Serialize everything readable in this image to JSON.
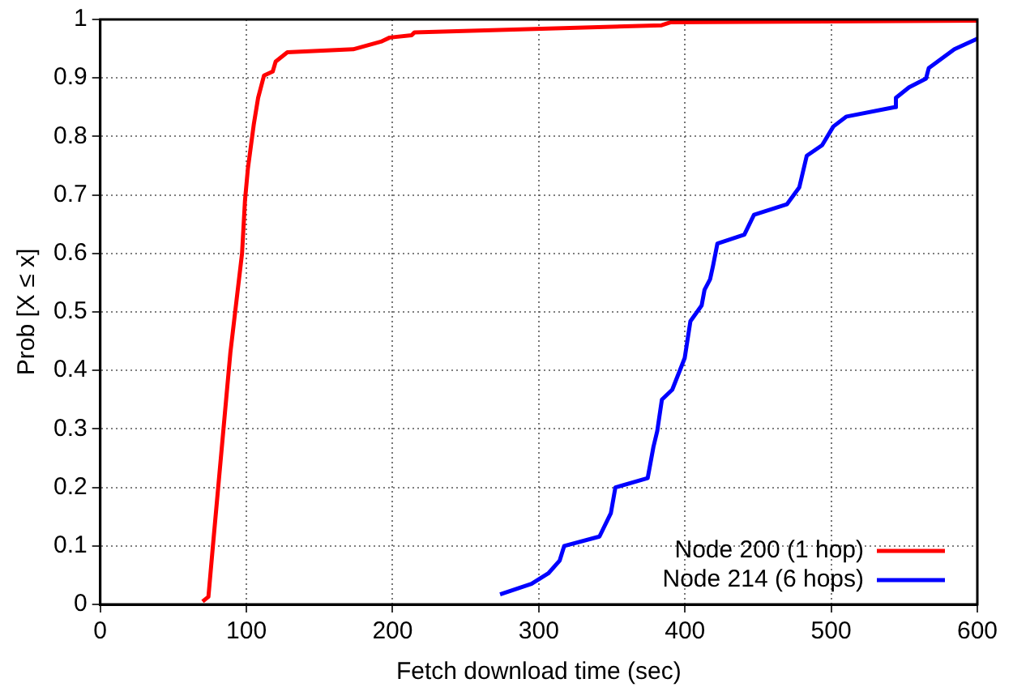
{
  "chart_data": {
    "type": "line",
    "xlabel": "Fetch download time (sec)",
    "ylabel": "Prob [X ≤ x]",
    "xlim": [
      0,
      600
    ],
    "xticks": [
      0,
      100,
      200,
      300,
      400,
      500,
      600
    ],
    "ylim": [
      0,
      1
    ],
    "yticks": [
      0,
      0.1,
      0.2,
      0.3,
      0.4,
      0.5,
      0.6,
      0.7,
      0.8,
      0.9,
      1
    ],
    "grid": true,
    "legend": "bottom right",
    "marker": "none",
    "line_style": "solid",
    "series": [
      {
        "name": "Node 200 (1 hop)",
        "color": "#ff0000",
        "x": [
          70,
          74,
          77,
          89,
          97,
          99,
          101,
          105,
          108,
          112,
          118,
          120,
          128,
          173,
          192,
          198,
          213,
          215,
          384,
          390,
          600
        ],
        "values": [
          0.005,
          0.013,
          0.098,
          0.43,
          0.6,
          0.69,
          0.745,
          0.82,
          0.866,
          0.904,
          0.911,
          0.928,
          0.944,
          0.949,
          0.962,
          0.969,
          0.973,
          0.978,
          0.99,
          0.995,
          0.998
        ]
      },
      {
        "name": "Node 214 (6 hops)",
        "color": "#0000ff",
        "x": [
          273.5,
          295,
          306.5,
          314.3,
          317.4,
          341.5,
          349.3,
          352.4,
          374.5,
          378.4,
          381,
          384.2,
          391.3,
          399.8,
          403.7,
          411.4,
          413.4,
          417.2,
          419.2,
          422.2,
          440.6,
          447.2,
          469.7,
          478.2,
          483.3,
          493.8,
          501.5,
          510.5,
          543.5,
          544.3,
          553.3,
          564.9,
          566.8,
          584.3,
          600
        ],
        "values": [
          0.017,
          0.035,
          0.053,
          0.075,
          0.1,
          0.116,
          0.156,
          0.2,
          0.216,
          0.269,
          0.296,
          0.35,
          0.367,
          0.421,
          0.484,
          0.511,
          0.538,
          0.556,
          0.579,
          0.617,
          0.632,
          0.666,
          0.684,
          0.713,
          0.767,
          0.785,
          0.817,
          0.834,
          0.85,
          0.866,
          0.884,
          0.899,
          0.917,
          0.949,
          0.967
        ]
      }
    ]
  }
}
